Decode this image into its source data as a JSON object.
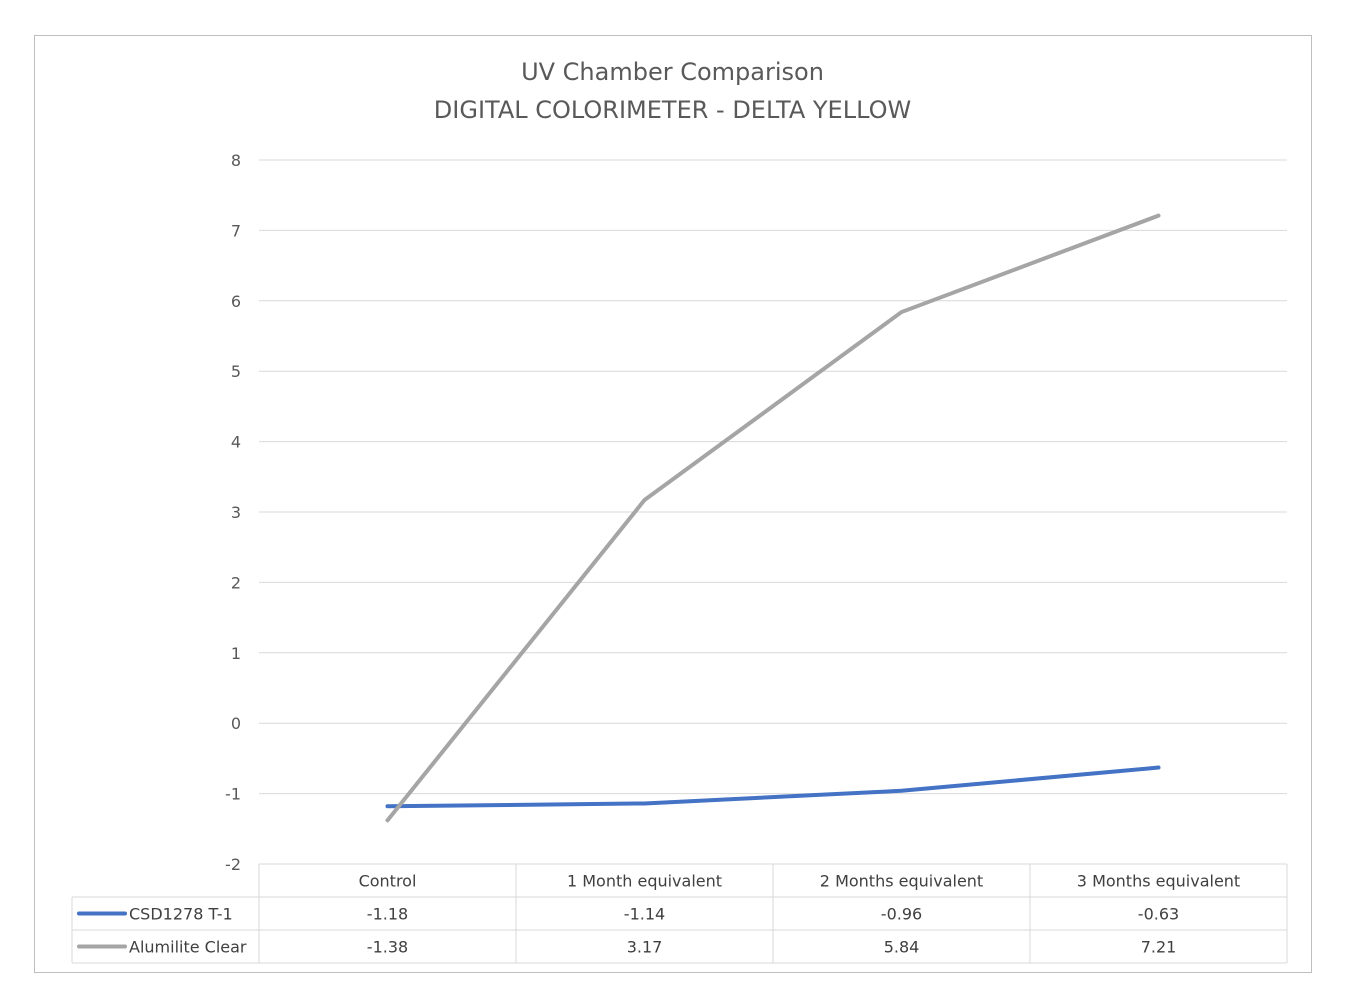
{
  "chart_data": {
    "type": "line",
    "title": "UV Chamber Comparison",
    "subtitle": "DIGITAL COLORIMETER - DELTA YELLOW",
    "categories": [
      "Control",
      "1 Month equivalent",
      "2 Months equivalent",
      "3 Months equivalent"
    ],
    "series": [
      {
        "name": "CSD1278 T-1",
        "color": "#4472c4",
        "values": [
          -1.18,
          -1.14,
          -0.96,
          -0.63
        ],
        "labels": [
          "-1.18",
          "-1.14",
          "-0.96",
          "-0.63"
        ]
      },
      {
        "name": "Alumilite Clear",
        "color": "#a5a5a5",
        "values": [
          -1.38,
          3.17,
          5.84,
          7.21
        ],
        "labels": [
          "-1.38",
          "3.17",
          "5.84",
          "7.21"
        ]
      }
    ],
    "ylim": [
      -2,
      8
    ],
    "yticks": [
      "-2",
      "-1",
      "0",
      "1",
      "2",
      "3",
      "4",
      "5",
      "6",
      "7",
      "8"
    ],
    "grid": true,
    "legend": "data-table"
  }
}
